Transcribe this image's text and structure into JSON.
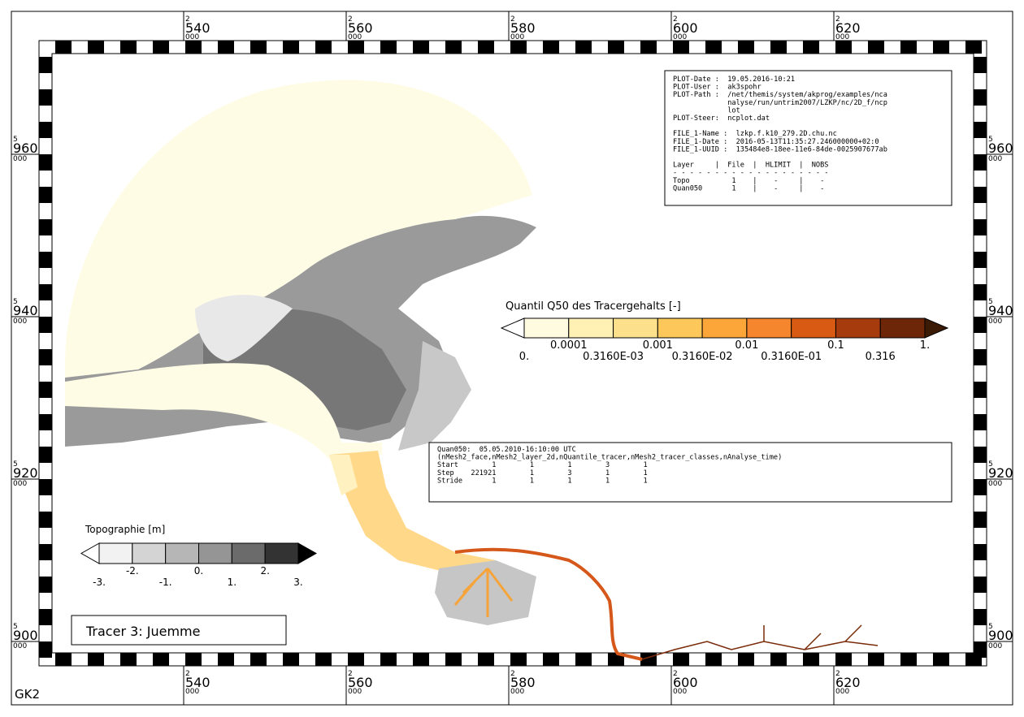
{
  "frame": {
    "corner_label": "GK2",
    "x_ticks": [
      {
        "prefix": "2",
        "main": "540",
        "suffix": "000"
      },
      {
        "prefix": "2",
        "main": "560",
        "suffix": "000"
      },
      {
        "prefix": "2",
        "main": "580",
        "suffix": "000"
      },
      {
        "prefix": "2",
        "main": "600",
        "suffix": "000"
      },
      {
        "prefix": "2",
        "main": "620",
        "suffix": "000"
      }
    ],
    "y_ticks": [
      {
        "prefix": "5",
        "main": "960",
        "suffix": "000"
      },
      {
        "prefix": "5",
        "main": "940",
        "suffix": "000"
      },
      {
        "prefix": "5",
        "main": "920",
        "suffix": "000"
      },
      {
        "prefix": "5",
        "main": "900",
        "suffix": "000"
      }
    ]
  },
  "info_box": {
    "blocks": [
      [
        "PLOT-Date :  19.05.2016-10:21",
        "PLOT-User :  ak3spohr",
        "PLOT-Path :  /net/themis/system/akprog/examples/nca",
        "             nalyse/run/untrim2007/LZKP/nc/2D_f/ncp",
        "             lot",
        "PLOT-Steer:  ncplot.dat"
      ],
      [
        "FILE_1-Name :  lzkp.f.k10_279.2D.chu.nc",
        "FILE_1-Date :  2016-05-13T11:35:27.246000000+02:0",
        "FILE_1-UUID :  135484e8-18ee-11e6-84de-0025907677ab"
      ],
      [
        "Layer     |  File  |  HLIMIT  |  NOBS",
        "- - - - - - - - - - - - - - - - - - -",
        "Topo          1    |    -     |    -",
        "Quan050       1    |    -     |    -"
      ]
    ]
  },
  "tracer_legend": {
    "title": "Quantil Q50 des Tracergehalts [-]",
    "under_color": "#ffffff",
    "colors": [
      "#fffbe0",
      "#fff0b4",
      "#fde08c",
      "#fdc75a",
      "#fca63a",
      "#f5862e",
      "#d95a12",
      "#a63b0e",
      "#6e2608"
    ],
    "over_color": "#3b1a06",
    "labels": [
      "0.",
      "0.0001",
      "0.3160E-03",
      "0.001",
      "0.3160E-02",
      "0.01",
      "0.3160E-01",
      "0.1",
      "0.316",
      "1."
    ]
  },
  "topo_legend": {
    "title": "Topographie [m]",
    "under_color": "#ffffff",
    "colors": [
      "#f2f2f2",
      "#d4d4d4",
      "#b6b6b6",
      "#959595",
      "#6b6b6b",
      "#333333"
    ],
    "over_color": "#000000",
    "labels": [
      "-3.",
      "-2.",
      "-1.",
      "0.",
      "1.",
      "2.",
      "3."
    ]
  },
  "title_box": "Tracer 3: Juemme",
  "variable_box": {
    "lines": [
      "Quan050:  05.05.2010-16:10:00 UTC",
      "(nMesh2_face,nMesh2_layer_2d,nQuantile_tracer,nMesh2_tracer_classes,nAnalyse_time)",
      "Start        1        1        1        3        1",
      "Step    221921        1        3        1        1",
      "Stride       1        1        1        1        1"
    ]
  }
}
